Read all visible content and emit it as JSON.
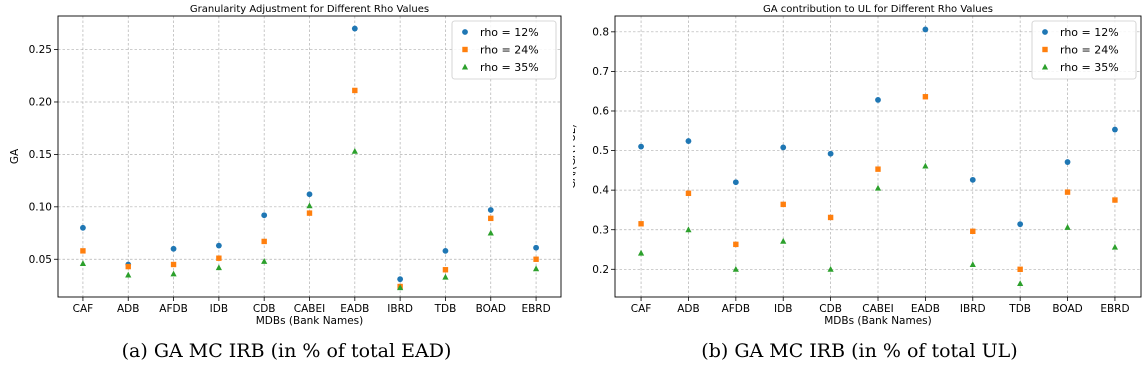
{
  "colors": {
    "s1": "#1f77b4",
    "s2": "#ff7f0e",
    "s3": "#2ca02c"
  },
  "chart_data": [
    {
      "type": "scatter",
      "title": "Granularity Adjustment for Different Rho Values",
      "xlabel": "MDBs (Bank Names)",
      "ylabel": "GA",
      "categories": [
        "CAF",
        "ADB",
        "AFDB",
        "IDB",
        "CDB",
        "CABEI",
        "EADB",
        "IBRD",
        "TDB",
        "BOAD",
        "EBRD"
      ],
      "ylim": [
        0.014,
        0.282
      ],
      "yticks": [
        0.05,
        0.1,
        0.15,
        0.2,
        0.25
      ],
      "ytick_labels": [
        "0.05",
        "0.10",
        "0.15",
        "0.20",
        "0.25"
      ],
      "grid": true,
      "legend_position": "top-right",
      "series": [
        {
          "name": "rho = 12%",
          "marker": "circle",
          "values": [
            0.08,
            0.045,
            0.06,
            0.063,
            0.092,
            0.112,
            0.27,
            0.031,
            0.058,
            0.097,
            0.061
          ]
        },
        {
          "name": "rho = 24%",
          "marker": "square",
          "values": [
            0.058,
            0.043,
            0.045,
            0.051,
            0.067,
            0.094,
            0.211,
            0.024,
            0.04,
            0.089,
            0.05
          ]
        },
        {
          "name": "rho = 35%",
          "marker": "triangle",
          "values": [
            0.046,
            0.035,
            0.036,
            0.042,
            0.048,
            0.101,
            0.153,
            0.023,
            0.033,
            0.075,
            0.041
          ]
        }
      ]
    },
    {
      "type": "scatter",
      "title": "GA contribution to UL for Different Rho Values",
      "xlabel": "MDBs (Bank Names)",
      "ylabel": "GA/(GA+UL)",
      "categories": [
        "CAF",
        "ADB",
        "AFDB",
        "IDB",
        "CDB",
        "CABEI",
        "EADB",
        "IBRD",
        "TDB",
        "BOAD",
        "EBRD"
      ],
      "ylim": [
        0.13,
        0.84
      ],
      "yticks": [
        0.2,
        0.3,
        0.4,
        0.5,
        0.6,
        0.7,
        0.8
      ],
      "ytick_labels": [
        "0.2",
        "0.3",
        "0.4",
        "0.5",
        "0.6",
        "0.7",
        "0.8"
      ],
      "grid": true,
      "legend_position": "top-right",
      "series": [
        {
          "name": "rho = 12%",
          "marker": "circle",
          "values": [
            0.51,
            0.524,
            0.42,
            0.508,
            0.492,
            0.628,
            0.806,
            0.426,
            0.314,
            0.471,
            0.553
          ]
        },
        {
          "name": "rho = 24%",
          "marker": "square",
          "values": [
            0.315,
            0.392,
            0.263,
            0.364,
            0.331,
            0.453,
            0.636,
            0.296,
            0.2,
            0.395,
            0.375
          ]
        },
        {
          "name": "rho = 35%",
          "marker": "triangle",
          "values": [
            0.241,
            0.3,
            0.2,
            0.271,
            0.2,
            0.405,
            0.461,
            0.212,
            0.164,
            0.306,
            0.256
          ]
        }
      ]
    }
  ],
  "captions": {
    "a": "(a) GA MC IRB (in % of total EAD)",
    "b": "(b) GA MC IRB (in % of total UL)"
  }
}
